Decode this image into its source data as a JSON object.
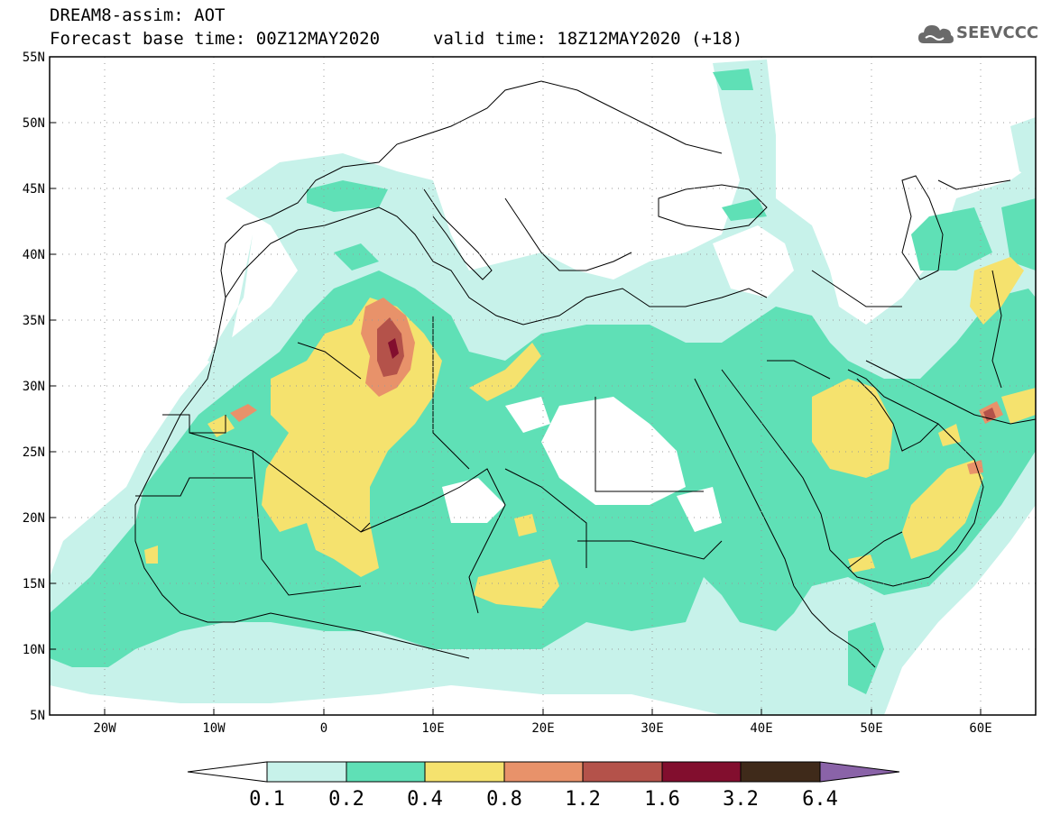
{
  "header": {
    "title": "DREAM8-assim: AOT",
    "base_time": "Forecast base time: 00Z12MAY2020",
    "valid_time": "valid time: 18Z12MAY2020 (+18)"
  },
  "logo": {
    "text": "SEEVCCC",
    "icon": "cloud-icon",
    "color": "#666666"
  },
  "map": {
    "lat_labels": [
      "55N",
      "50N",
      "45N",
      "40N",
      "35N",
      "30N",
      "25N",
      "20N",
      "15N",
      "10N",
      "5N"
    ],
    "lon_labels": [
      "20W",
      "10W",
      "0",
      "10E",
      "20E",
      "30E",
      "40E",
      "50E",
      "60E"
    ],
    "lat_range": [
      5,
      55
    ],
    "lon_range": [
      -25,
      65
    ]
  },
  "legend": {
    "labels": [
      "0.1",
      "0.2",
      "0.4",
      "0.8",
      "1.2",
      "1.6",
      "3.2",
      "6.4"
    ],
    "colors": [
      "#ffffff",
      "#c7f2ea",
      "#5fe0b6",
      "#f5e26e",
      "#e8926a",
      "#b4524a",
      "#820e2e",
      "#3f2a1a",
      "#8a63a8"
    ]
  }
}
